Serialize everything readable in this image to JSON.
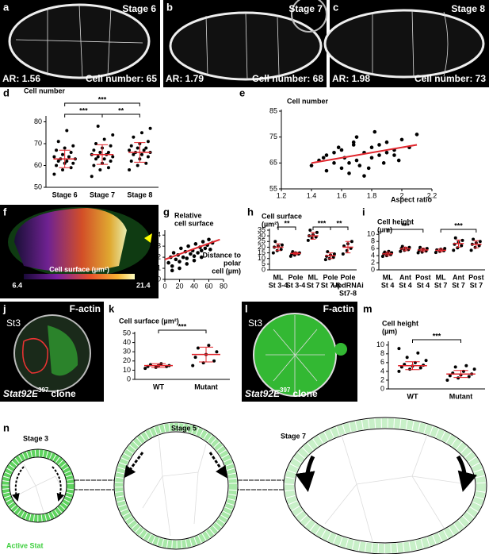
{
  "micrographs": [
    {
      "panel": "a",
      "stage": "Stage 6",
      "ar": "AR: 1.56",
      "cells": "Cell number: 65"
    },
    {
      "panel": "b",
      "stage": "Stage 7",
      "ar": "AR: 1.79",
      "cells": "Cell number: 68"
    },
    {
      "panel": "c",
      "stage": "Stage 8",
      "ar": "AR: 1.98",
      "cells": "Cell number: 73"
    }
  ],
  "surface_map": {
    "panel": "f",
    "scale_label": "Cell surface (µm²)",
    "scale_min": 6.4,
    "scale_max": 21.4
  },
  "clones": [
    {
      "panel": "j",
      "stain": "F-actin",
      "stage": "St3",
      "gene": "Stat92E",
      "allele": "397",
      "suffix": "clone"
    },
    {
      "panel": "l",
      "stain": "F-actin",
      "stage": "St3",
      "gene": "Stat92E",
      "allele": "397",
      "suffix": "clone"
    }
  ],
  "diagram": {
    "panel": "n",
    "stages": [
      "Stage 3",
      "Stage 5",
      "Stage 7"
    ],
    "legend": "Active Stat"
  },
  "chart_data": [
    {
      "type": "strip",
      "panel": "d",
      "ylabel": [
        "Cell number"
      ],
      "categories": [
        [
          "Stage 6"
        ],
        [
          "Stage 7"
        ],
        [
          "Stage 8"
        ]
      ],
      "values": [
        [
          56,
          58,
          59,
          60,
          61,
          61,
          62,
          62,
          63,
          63,
          64,
          64,
          65,
          66,
          67,
          68,
          69,
          71,
          76
        ],
        [
          55,
          58,
          59,
          60,
          61,
          62,
          63,
          63,
          64,
          64,
          65,
          65,
          66,
          66,
          67,
          68,
          69,
          70,
          72,
          74,
          78
        ],
        [
          58,
          60,
          61,
          62,
          63,
          64,
          65,
          65,
          66,
          66,
          67,
          67,
          68,
          68,
          69,
          70,
          71,
          73,
          75,
          77
        ]
      ],
      "means": [
        63,
        65,
        66
      ],
      "sds": [
        4,
        4.5,
        4.5
      ],
      "ylim": [
        50,
        82
      ],
      "yticks": [
        50,
        60,
        70,
        80
      ],
      "brackets": [
        {
          "from": 0,
          "to": 1,
          "label": "***"
        },
        {
          "from": 1,
          "to": 2,
          "label": "**"
        },
        {
          "from": 0,
          "to": 2,
          "label": "***"
        }
      ]
    },
    {
      "type": "scatter",
      "panel": "e",
      "ylabel": [
        "Cell number"
      ],
      "xlabel": [
        "Aspect ratio"
      ],
      "color": "#000000",
      "x": [
        1.4,
        1.45,
        1.5,
        1.5,
        1.55,
        1.6,
        1.6,
        1.62,
        1.65,
        1.68,
        1.7,
        1.7,
        1.72,
        1.75,
        1.78,
        1.8,
        1.8,
        1.82,
        1.85,
        1.88,
        1.9,
        1.9,
        1.95,
        1.98,
        2.0,
        2.05,
        2.1,
        1.55,
        1.65,
        1.75,
        1.85,
        1.95,
        1.48,
        1.58,
        1.68
      ],
      "y": [
        64,
        66,
        62,
        68,
        65,
        63,
        70,
        67,
        61,
        72,
        66,
        75,
        64,
        69,
        63,
        71,
        67,
        77,
        68,
        65,
        73,
        69,
        70,
        66,
        74,
        71,
        76,
        69,
        65,
        60,
        72,
        68,
        67,
        71,
        73
      ],
      "trend": {
        "x": [
          1.4,
          2.1
        ],
        "y": [
          65,
          72
        ]
      },
      "xlim": [
        1.2,
        2.2
      ],
      "xticks": [
        1.2,
        1.4,
        1.6,
        1.8,
        2,
        2.2
      ],
      "ylim": [
        55,
        85
      ],
      "yticks": [
        55,
        65,
        75,
        85
      ]
    },
    {
      "type": "scatter",
      "panel": "g",
      "ylabel": [
        "Relative",
        "cell surface"
      ],
      "xlabel": [
        "Distance to",
        "polar",
        "cell (µm)"
      ],
      "color": "#000000",
      "x": [
        5,
        8,
        10,
        12,
        15,
        18,
        20,
        22,
        25,
        28,
        30,
        32,
        35,
        38,
        40,
        42,
        45,
        48,
        50,
        52,
        55,
        58,
        60,
        62,
        65,
        10,
        20,
        30,
        40,
        50
      ],
      "y": [
        1.5,
        2.0,
        1.2,
        2.4,
        1.8,
        2.2,
        1.6,
        2.8,
        2.0,
        2.5,
        1.9,
        3.0,
        2.3,
        2.6,
        2.1,
        3.2,
        2.4,
        2.9,
        2.6,
        3.4,
        2.8,
        3.1,
        3.6,
        2.7,
        3.3,
        0.8,
        1.0,
        1.4,
        1.7,
        2.0
      ],
      "trend": {
        "x": [
          0,
          75
        ],
        "y": [
          1.8,
          3.6
        ]
      },
      "xlim": [
        0,
        80
      ],
      "xticks": [
        0,
        20,
        40,
        60,
        80
      ],
      "ylim": [
        0,
        4.3
      ],
      "yticks": [
        0,
        1,
        2,
        3,
        4
      ]
    },
    {
      "type": "strip",
      "panel": "h",
      "ylabel": [
        "Cell surface",
        "(µm²)"
      ],
      "categories": [
        [
          "ML",
          "St 3-4"
        ],
        [
          "Pole",
          "St 3-4"
        ],
        [
          "ML",
          "St 7"
        ],
        [
          "Pole",
          "St 7-8"
        ],
        [
          "Pole",
          "UpdRNAi",
          "St7-8"
        ]
      ],
      "values": [
        [
          15,
          17,
          18,
          20,
          21,
          22,
          25
        ],
        [
          12,
          13,
          14,
          14,
          15,
          15,
          16
        ],
        [
          26,
          28,
          29,
          30,
          31,
          33,
          35
        ],
        [
          9,
          10,
          11,
          12,
          13,
          14,
          16
        ],
        [
          14,
          17,
          19,
          21,
          23,
          25
        ]
      ],
      "means": [
        20,
        14.5,
        30,
        12.5,
        20
      ],
      "sds": [
        3,
        1,
        3,
        2.5,
        5
      ],
      "ylim": [
        0,
        35
      ],
      "yticks": [
        0,
        5,
        10,
        15,
        20,
        25,
        30,
        35
      ],
      "brackets": [
        {
          "from": 0,
          "to": 1,
          "label": "**"
        },
        {
          "from": 2,
          "to": 3,
          "label": "***"
        },
        {
          "from": 3,
          "to": 4,
          "label": "**"
        }
      ]
    },
    {
      "type": "strip",
      "panel": "i",
      "ylabel": [
        "Cell height",
        "(µm)"
      ],
      "categories": [
        [
          "ML",
          "St 4"
        ],
        [
          "Ant",
          "St 4"
        ],
        [
          "Post",
          "St 4"
        ],
        [
          "ML",
          "St 7"
        ],
        [
          "Ant",
          "St 7"
        ],
        [
          "Post",
          "St 7"
        ]
      ],
      "values": [
        [
          3.8,
          4.0,
          4.3,
          4.5,
          4.6,
          4.8,
          5.0,
          5.2
        ],
        [
          5.2,
          5.5,
          5.7,
          6.0,
          6.1,
          6.3,
          6.6
        ],
        [
          4.8,
          5.0,
          5.3,
          5.5,
          5.8,
          6.0,
          6.3
        ],
        [
          4.9,
          5.2,
          5.4,
          5.6,
          5.8,
          6.0
        ],
        [
          5.5,
          6.2,
          6.8,
          7.2,
          7.8,
          8.3,
          9.0
        ],
        [
          5.5,
          6.3,
          6.8,
          7.2,
          7.6,
          8.0,
          8.6
        ]
      ],
      "means": [
        4.5,
        5.9,
        5.6,
        5.5,
        7.4,
        7.2
      ],
      "sds": [
        0.5,
        0.5,
        0.5,
        0.4,
        1,
        1
      ],
      "ylim": [
        0,
        10.5
      ],
      "yticks": [
        0,
        2,
        4,
        6,
        8,
        10
      ],
      "brackets": [
        {
          "from": 0,
          "to": 2,
          "label": "***"
        },
        {
          "from": 3,
          "to": 5,
          "label": "***"
        }
      ]
    },
    {
      "type": "strip",
      "panel": "k",
      "ylabel": [
        "Cell surface (µm²)"
      ],
      "categories": [
        [
          "WT"
        ],
        [
          "Mutant"
        ]
      ],
      "values": [
        [
          12,
          13,
          14,
          14,
          15,
          15,
          16,
          17
        ],
        [
          15,
          18,
          20,
          24,
          27,
          30,
          34,
          37
        ]
      ],
      "means": [
        15,
        27
      ],
      "sds": [
        2,
        8
      ],
      "ylim": [
        0,
        50
      ],
      "yticks": [
        0,
        10,
        20,
        30,
        40,
        50
      ],
      "brackets": [
        {
          "from": 0,
          "to": 1,
          "label": "***"
        }
      ]
    },
    {
      "type": "strip",
      "panel": "m",
      "ylabel": [
        "Cell height",
        "(µm)"
      ],
      "categories": [
        [
          "WT"
        ],
        [
          "Mutant"
        ]
      ],
      "values": [
        [
          4,
          4.5,
          4.8,
          5.0,
          5.2,
          5.4,
          5.6,
          6.0,
          6.5,
          7.2,
          8.2,
          9.2
        ],
        [
          2.0,
          2.5,
          2.8,
          3.0,
          3.2,
          3.4,
          3.6,
          4.0,
          4.5,
          5.0,
          5.3
        ]
      ],
      "means": [
        5.3,
        3.4
      ],
      "sds": [
        0.9,
        0.8
      ],
      "ylim": [
        0,
        10.5
      ],
      "yticks": [
        0,
        2,
        4,
        6,
        8,
        10
      ],
      "brackets": [
        {
          "from": 0,
          "to": 1,
          "label": "***"
        }
      ]
    }
  ]
}
